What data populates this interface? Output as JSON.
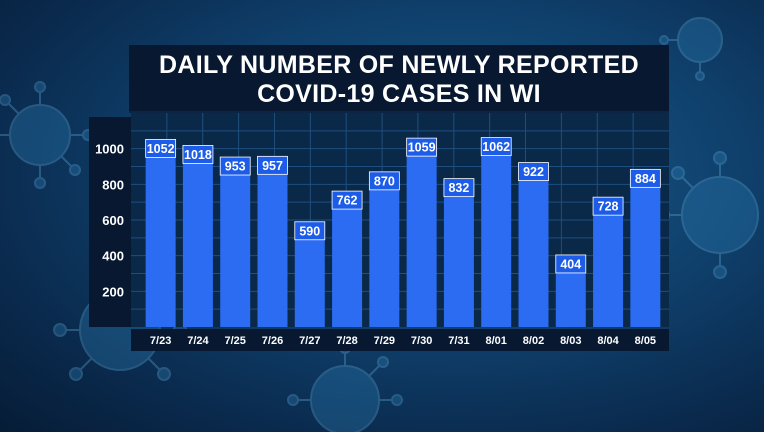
{
  "chart_data": {
    "type": "bar",
    "title_lines": [
      "DAILY NUMBER OF NEWLY REPORTED",
      "COVID-19 CASES IN WI"
    ],
    "categories": [
      "7/23",
      "7/24",
      "7/25",
      "7/26",
      "7/27",
      "7/28",
      "7/29",
      "7/30",
      "7/31",
      "8/01",
      "8/02",
      "8/03",
      "8/04",
      "8/05"
    ],
    "values": [
      1052,
      1018,
      953,
      957,
      590,
      762,
      870,
      1059,
      832,
      1062,
      922,
      404,
      728,
      884
    ],
    "yticks": [
      200,
      400,
      600,
      800,
      1000
    ],
    "ylim": [
      0,
      1200
    ],
    "grid": true,
    "bar_color": "#2b6cf2",
    "label_box_color": "#1c5ce8"
  },
  "background_icon": "coronavirus-icon"
}
